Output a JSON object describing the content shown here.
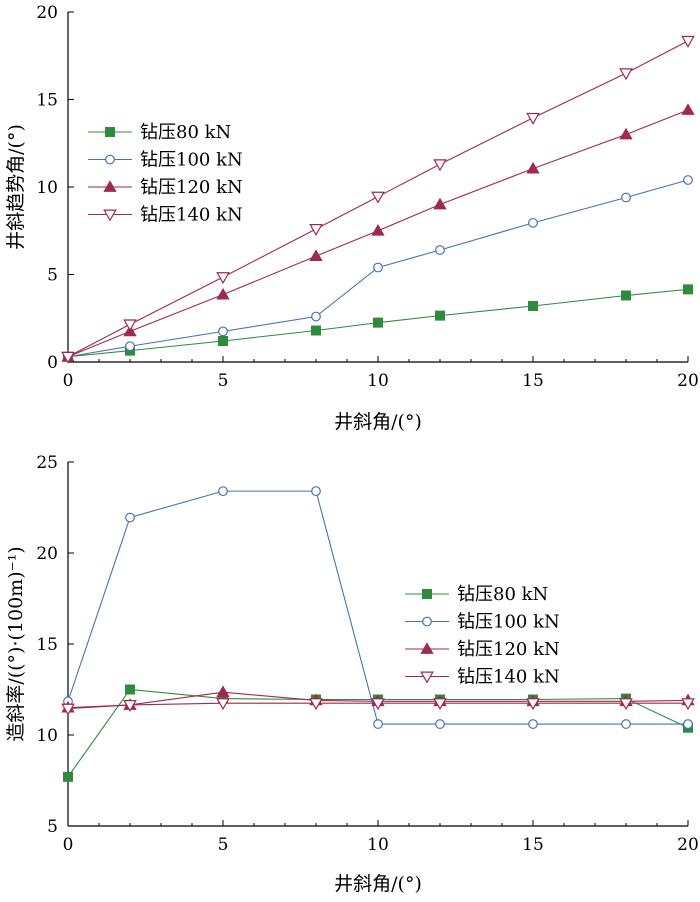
{
  "chart_data": [
    {
      "type": "line",
      "xlabel": "井斜角/(°)",
      "ylabel": "井斜趋势角/(°)",
      "xlim": [
        0,
        20
      ],
      "ylim": [
        0,
        20
      ],
      "x_ticks": [
        0,
        5,
        10,
        15,
        20
      ],
      "y_ticks": [
        0,
        5,
        10,
        15,
        20
      ],
      "legend_position": "upper-left",
      "series": [
        {
          "name": "钻压80 kN",
          "color": "#2e8b3e",
          "marker": "square",
          "x": [
            0,
            2,
            5,
            8,
            10,
            12,
            15,
            18,
            20
          ],
          "y": [
            0.3,
            0.65,
            1.2,
            1.8,
            2.25,
            2.65,
            3.2,
            3.8,
            4.15
          ]
        },
        {
          "name": "钻压100 kN",
          "color": "#4a72b0",
          "marker": "circle-open",
          "x": [
            0,
            2,
            5,
            8,
            10,
            12,
            15,
            18,
            20
          ],
          "y": [
            0.3,
            0.9,
            1.75,
            2.6,
            5.4,
            6.4,
            7.95,
            9.4,
            10.4
          ]
        },
        {
          "name": "钻压120 kN",
          "color": "#9e2a4e",
          "marker": "triangle-up",
          "x": [
            0,
            2,
            5,
            8,
            10,
            12,
            15,
            18,
            20
          ],
          "y": [
            0.3,
            1.75,
            3.85,
            6.05,
            7.5,
            9.0,
            11.05,
            13.0,
            14.4
          ]
        },
        {
          "name": "钻压140 kN",
          "color": "#9e2a4e",
          "marker": "triangle-down-open",
          "x": [
            0,
            2,
            5,
            8,
            10,
            12,
            15,
            18,
            20
          ],
          "y": [
            0.3,
            2.15,
            4.85,
            7.6,
            9.45,
            11.3,
            13.95,
            16.5,
            18.35
          ]
        }
      ]
    },
    {
      "type": "line",
      "xlabel": "井斜角/(°)",
      "ylabel": "造斜率/((°)·(100m)⁻¹)",
      "xlim": [
        0,
        20
      ],
      "ylim": [
        5,
        25
      ],
      "x_ticks": [
        0,
        5,
        10,
        15,
        20
      ],
      "y_ticks": [
        5,
        10,
        15,
        20,
        25
      ],
      "legend_position": "center-right",
      "series": [
        {
          "name": "钻压80 kN",
          "color": "#2e8b3e",
          "marker": "square",
          "x": [
            0,
            2,
            5,
            8,
            10,
            12,
            15,
            18,
            20
          ],
          "y": [
            7.7,
            12.5,
            12.0,
            11.95,
            11.95,
            11.95,
            11.95,
            12.0,
            10.4
          ]
        },
        {
          "name": "钻压100 kN",
          "color": "#4a72b0",
          "marker": "circle-open",
          "x": [
            0,
            2,
            5,
            8,
            10,
            12,
            15,
            18,
            20
          ],
          "y": [
            11.85,
            21.95,
            23.4,
            23.4,
            10.6,
            10.6,
            10.6,
            10.6,
            10.6
          ]
        },
        {
          "name": "钻压120 kN",
          "color": "#9e2a4e",
          "marker": "triangle-up",
          "x": [
            0,
            2,
            5,
            8,
            10,
            12,
            15,
            18,
            20
          ],
          "y": [
            11.5,
            11.65,
            12.35,
            11.9,
            11.85,
            11.85,
            11.85,
            11.85,
            11.9
          ]
        },
        {
          "name": "钻压140 kN",
          "color": "#9e2a4e",
          "marker": "triangle-down-open",
          "x": [
            0,
            2,
            5,
            8,
            10,
            12,
            15,
            18,
            20
          ],
          "y": [
            11.45,
            11.65,
            11.75,
            11.75,
            11.75,
            11.75,
            11.75,
            11.75,
            11.75
          ]
        }
      ]
    }
  ]
}
